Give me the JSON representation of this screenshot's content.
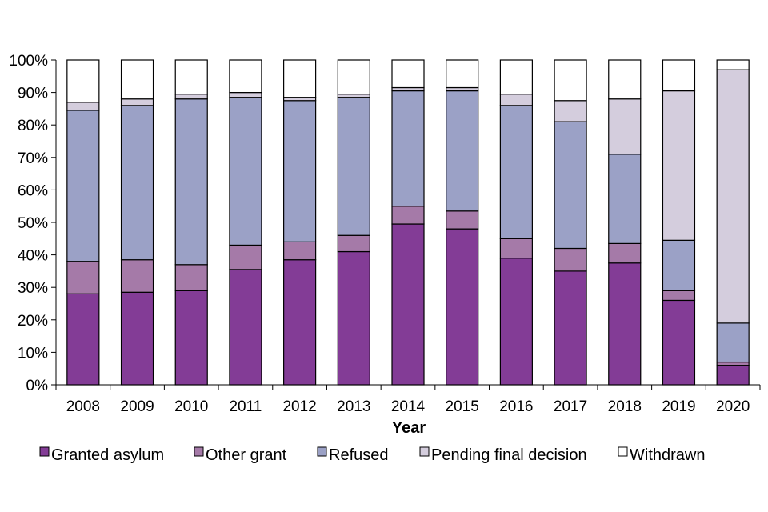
{
  "chart_data": {
    "type": "bar",
    "stacked": true,
    "normalized": true,
    "title": "",
    "xlabel": "Year",
    "ylabel": "",
    "ylim": [
      0,
      100
    ],
    "yticks": [
      0,
      10,
      20,
      30,
      40,
      50,
      60,
      70,
      80,
      90,
      100
    ],
    "ytick_labels": [
      "0%",
      "10%",
      "20%",
      "30%",
      "40%",
      "50%",
      "60%",
      "70%",
      "80%",
      "90%",
      "100%"
    ],
    "grid": false,
    "legend_position": "bottom",
    "categories": [
      "2008",
      "2009",
      "2010",
      "2011",
      "2012",
      "2013",
      "2014",
      "2015",
      "2016",
      "2017",
      "2018",
      "2019",
      "2020"
    ],
    "series": [
      {
        "name": "Granted asylum",
        "color": "#833C96",
        "values": [
          28,
          28.5,
          29,
          35.5,
          38.5,
          41,
          49.5,
          48,
          39,
          35,
          37.5,
          26,
          6
        ]
      },
      {
        "name": "Other grant",
        "color": "#A57AA8",
        "values": [
          10,
          10,
          8,
          7.5,
          5.5,
          5,
          5.5,
          5.5,
          6,
          7,
          6,
          3,
          1
        ]
      },
      {
        "name": "Refused",
        "color": "#9BA1C6",
        "values": [
          46.5,
          47.5,
          51,
          45.5,
          43.5,
          42.5,
          35.5,
          37,
          41,
          39,
          27.5,
          15.5,
          12
        ]
      },
      {
        "name": "Pending final decision",
        "color": "#D4CDDD",
        "values": [
          2.5,
          2,
          1.5,
          1.5,
          1,
          1,
          1,
          1,
          3.5,
          6.5,
          17,
          46,
          78
        ]
      },
      {
        "name": "Withdrawn",
        "color": "#FFFFFF",
        "values": [
          13,
          12,
          10.5,
          10,
          11.5,
          10.5,
          8.5,
          8.5,
          10.5,
          12.5,
          12,
          9.5,
          3
        ]
      }
    ]
  }
}
